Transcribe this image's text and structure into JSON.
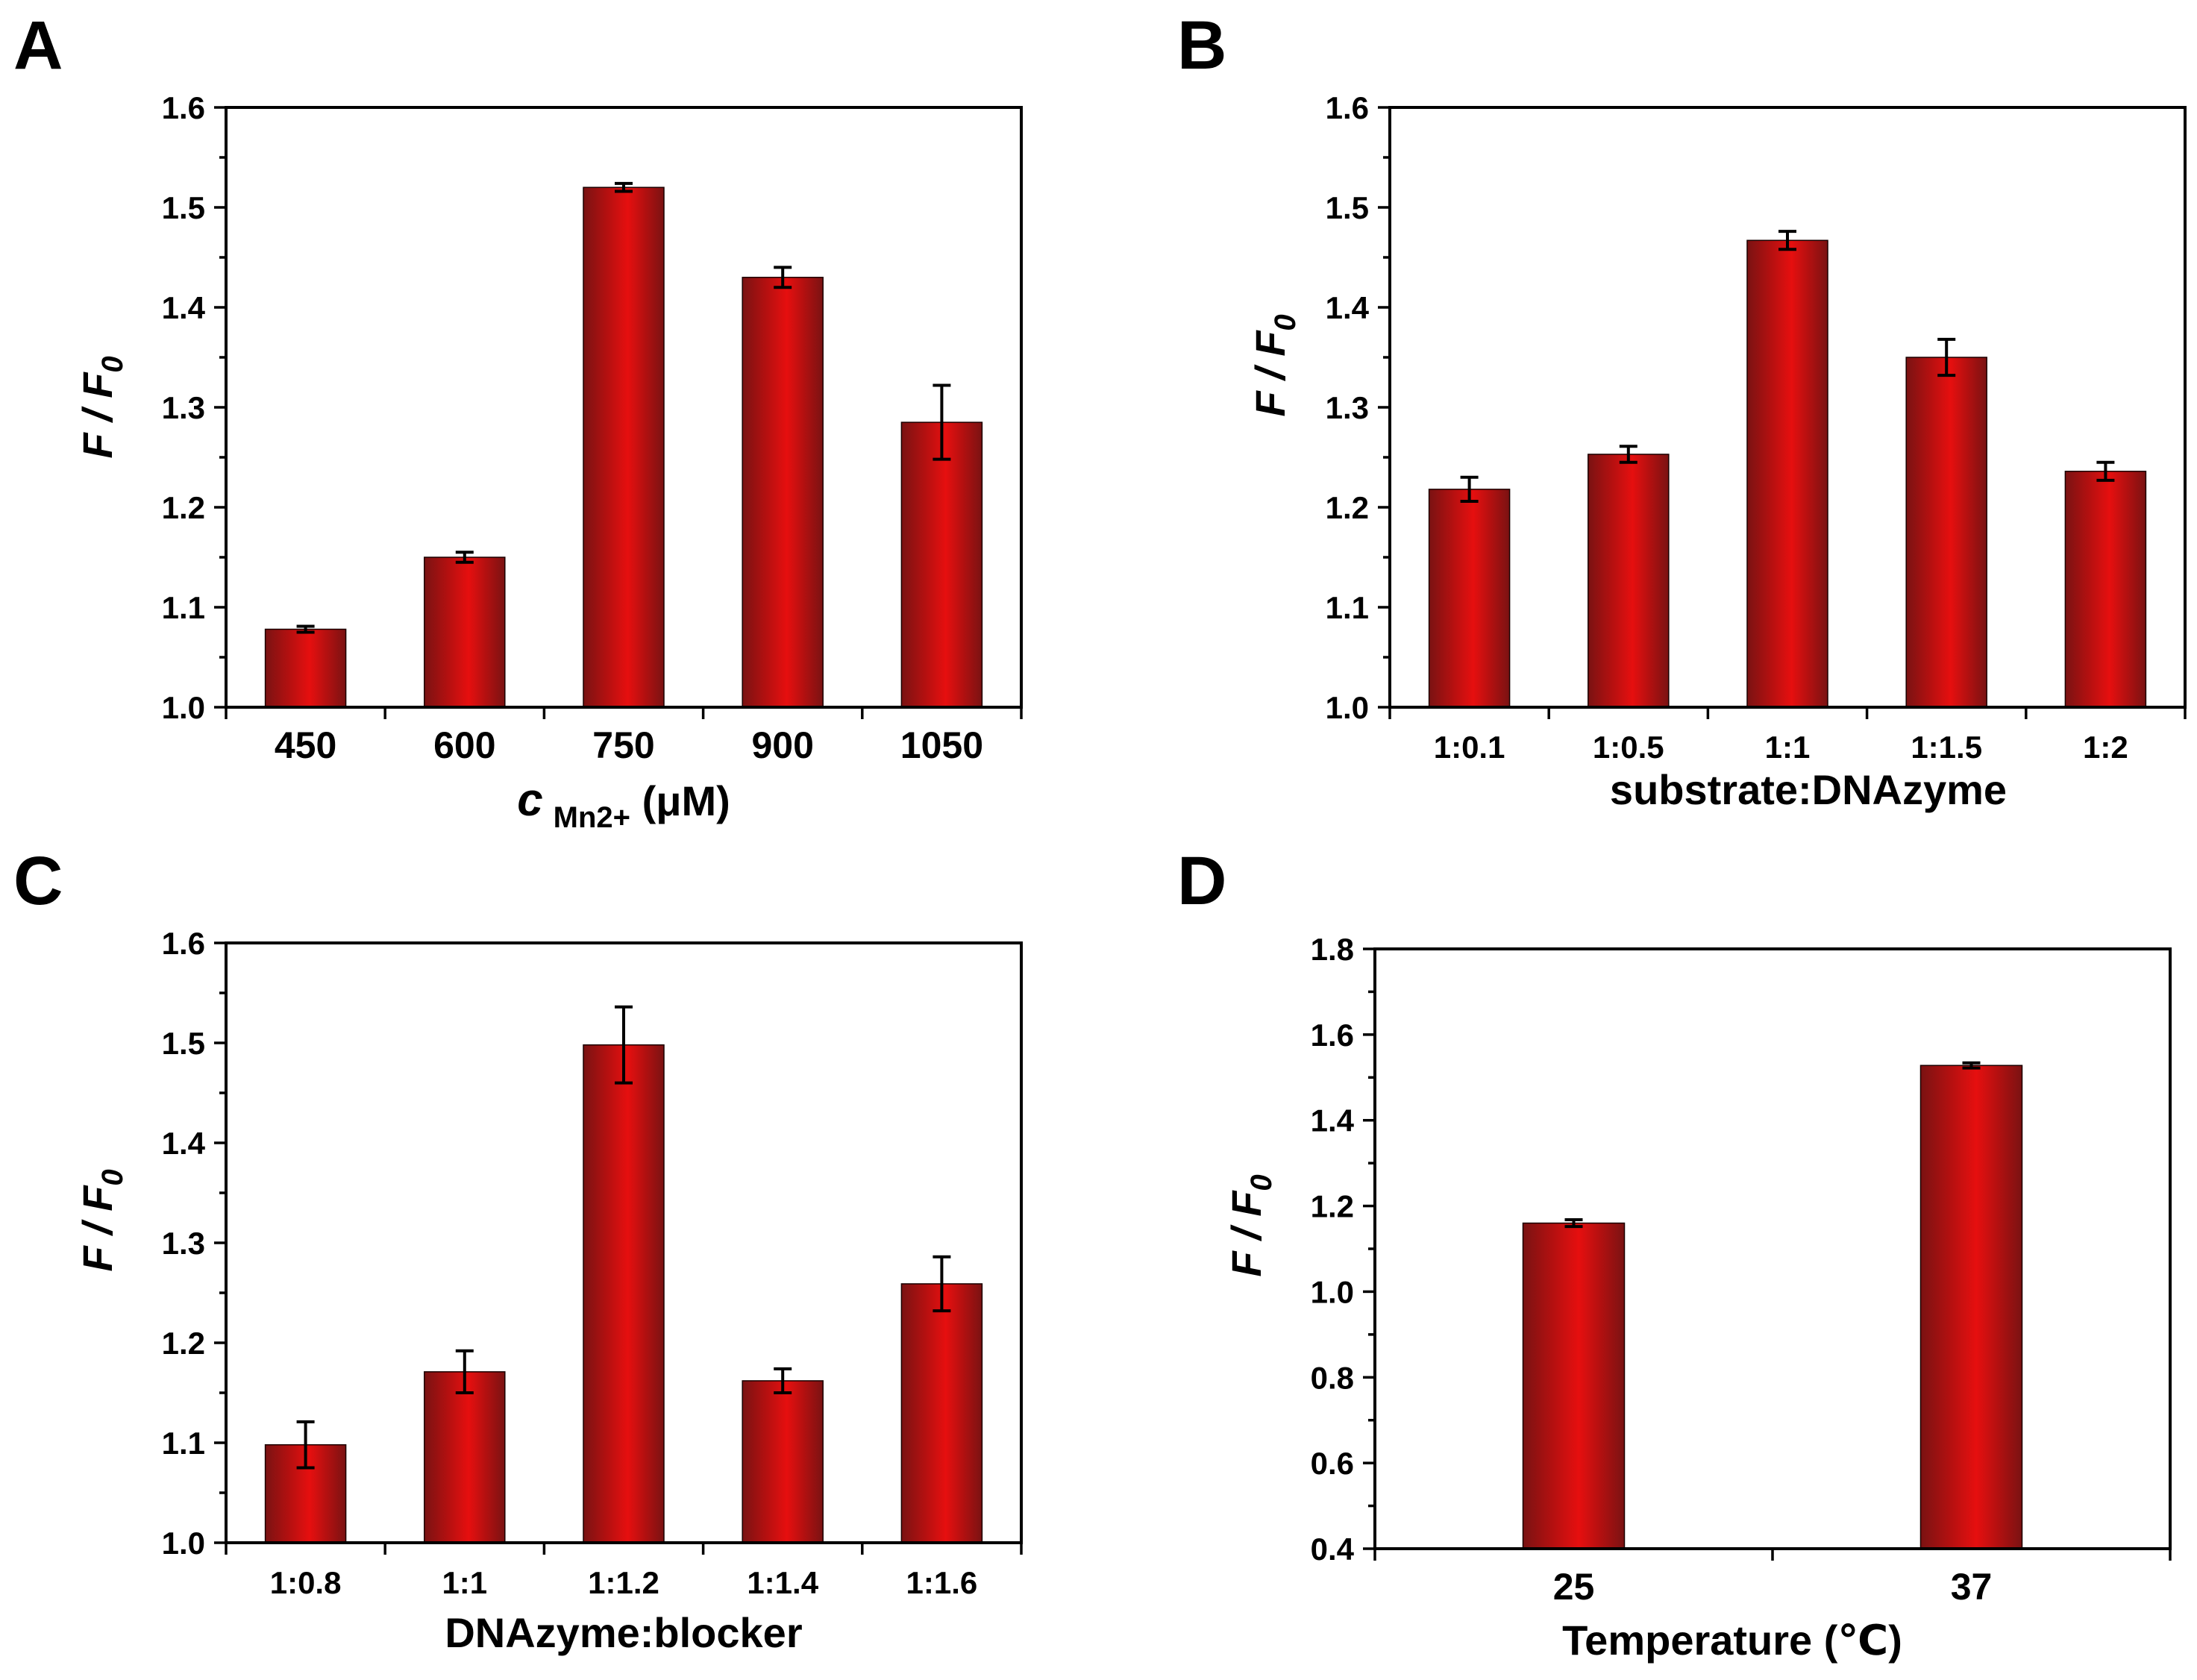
{
  "bar_gradient": {
    "edge": "#7a1212",
    "mid": "#e60f0f"
  },
  "panels": [
    {
      "letter": "A"
    },
    {
      "letter": "B"
    },
    {
      "letter": "C"
    },
    {
      "letter": "D"
    }
  ],
  "chart_data": [
    {
      "panel": "A",
      "type": "bar",
      "ylabel_main": "F / F",
      "ylabel_sub": "0",
      "xlabel_italic": "c",
      "xlabel_sub": "Mn2+",
      "xlabel_unit": " (μM)",
      "categories": [
        "450",
        "600",
        "750",
        "900",
        "1050"
      ],
      "values": [
        1.078,
        1.15,
        1.52,
        1.43,
        1.285
      ],
      "errors": [
        0.003,
        0.005,
        0.004,
        0.01,
        0.037
      ],
      "ylim": [
        1.0,
        1.6
      ],
      "yticks": [
        "1.0",
        "1.1",
        "1.2",
        "1.3",
        "1.4",
        "1.5",
        "1.6"
      ]
    },
    {
      "panel": "B",
      "type": "bar",
      "ylabel_main": "F / F",
      "ylabel_sub": "0",
      "xlabel": "substrate:DNAzyme",
      "categories": [
        "1:0.1",
        "1:0.5",
        "1:1",
        "1:1.5",
        "1:2"
      ],
      "values": [
        1.218,
        1.253,
        1.467,
        1.35,
        1.236
      ],
      "errors": [
        0.012,
        0.008,
        0.009,
        0.018,
        0.009
      ],
      "ylim": [
        1.0,
        1.6
      ],
      "yticks": [
        "1.0",
        "1.1",
        "1.2",
        "1.3",
        "1.4",
        "1.5",
        "1.6"
      ]
    },
    {
      "panel": "C",
      "type": "bar",
      "ylabel_main": "F / F",
      "ylabel_sub": "0",
      "xlabel": "DNAzyme:blocker",
      "categories": [
        "1:0.8",
        "1:1",
        "1:1.2",
        "1:1.4",
        "1:1.6"
      ],
      "values": [
        1.098,
        1.171,
        1.498,
        1.162,
        1.259
      ],
      "errors": [
        0.023,
        0.021,
        0.038,
        0.012,
        0.027
      ],
      "ylim": [
        1.0,
        1.6
      ],
      "yticks": [
        "1.0",
        "1.1",
        "1.2",
        "1.3",
        "1.4",
        "1.5",
        "1.6"
      ]
    },
    {
      "panel": "D",
      "type": "bar",
      "ylabel_main": "F / F",
      "ylabel_sub": "0",
      "xlabel": "Temperature (℃)",
      "categories": [
        "25",
        "37"
      ],
      "values": [
        1.16,
        1.528
      ],
      "errors": [
        0.008,
        0.006
      ],
      "ylim": [
        0.4,
        1.8
      ],
      "yticks": [
        "0.4",
        "0.6",
        "0.8",
        "1.0",
        "1.2",
        "1.4",
        "1.6",
        "1.8"
      ]
    }
  ]
}
